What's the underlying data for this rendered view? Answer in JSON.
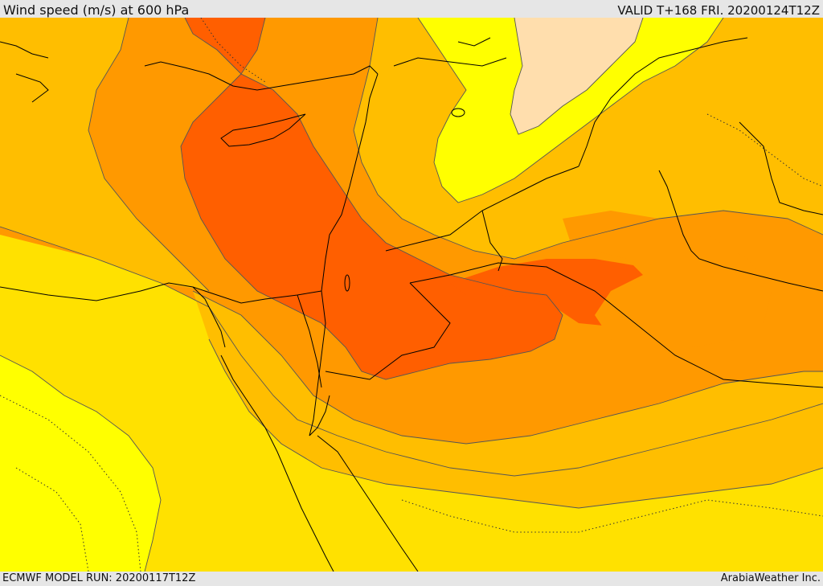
{
  "header": {
    "title": "Wind speed (m/s) at 600 hPa",
    "valid": "VALID T+168 FRI. 20200124T12Z"
  },
  "footer": {
    "model_run": "ECMWF MODEL RUN: 20200117T12Z",
    "credit": "ArabiaWeather Inc."
  },
  "palette": {
    "pale": "#ffdead",
    "yellow": "#ffff00",
    "gold": "#ffe100",
    "amber": "#ffbe00",
    "orange": "#ff9900",
    "dark_orange": "#ff5f00",
    "coast": "#000000",
    "contour": "#555555"
  }
}
